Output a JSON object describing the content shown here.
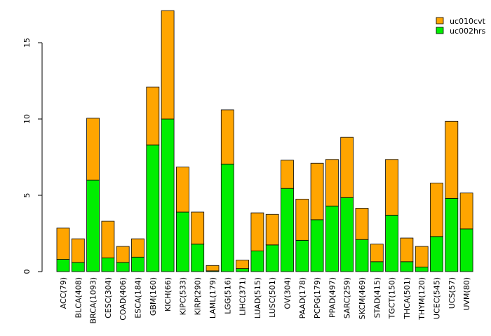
{
  "chart_data": {
    "type": "bar",
    "stacked": true,
    "title": "",
    "xlabel": "",
    "ylabel": "",
    "ylim": [
      0,
      17.5
    ],
    "yticks": [
      0,
      5,
      10,
      15
    ],
    "grid": false,
    "legend_position": "top-right",
    "categories": [
      "ACC(79)",
      "BLCA(408)",
      "BRCA(1093)",
      "CESC(304)",
      "COAD(406)",
      "ESCA(184)",
      "GBM(160)",
      "KICH(66)",
      "KIPC(533)",
      "KIRP(290)",
      "LAML(179)",
      "LGG(516)",
      "LIHC(371)",
      "LUAD(515)",
      "LUSC(501)",
      "OV(304)",
      "PAAD(178)",
      "PCPG(179)",
      "PPAD(497)",
      "SARC(259)",
      "SKCM(469)",
      "STAD(415)",
      "TGCT(150)",
      "THCA(501)",
      "THYM(120)",
      "UCEC(545)",
      "UCS(57)",
      "UVM(80)"
    ],
    "series": [
      {
        "name": "uc002hrs",
        "color": "#00ee00",
        "values": [
          0.8,
          0.6,
          6.0,
          0.9,
          0.6,
          0.95,
          8.3,
          10.0,
          3.9,
          1.8,
          0.05,
          7.05,
          0.2,
          1.35,
          1.75,
          5.45,
          2.05,
          3.4,
          4.3,
          4.85,
          2.1,
          0.65,
          3.7,
          0.65,
          0.3,
          2.3,
          4.8,
          2.8
        ]
      },
      {
        "name": "uc010cvt",
        "color": "#ffa500",
        "values": [
          2.05,
          1.55,
          4.05,
          2.4,
          1.05,
          1.2,
          3.8,
          7.1,
          2.95,
          2.1,
          0.35,
          3.55,
          0.55,
          2.5,
          2.0,
          1.85,
          2.7,
          3.7,
          3.05,
          3.95,
          2.05,
          1.15,
          3.65,
          1.55,
          1.35,
          3.5,
          5.05,
          2.35
        ]
      }
    ]
  }
}
